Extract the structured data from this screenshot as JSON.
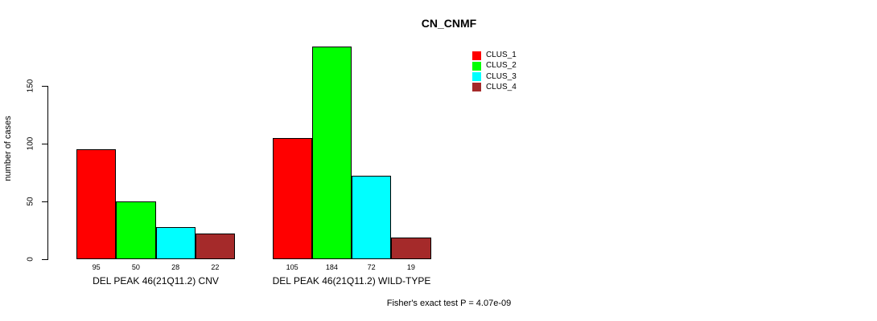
{
  "chart_data": {
    "type": "bar",
    "title": "CN_CNMF",
    "ylabel": "number of cases",
    "xlabel": "",
    "ylim": [
      0,
      150
    ],
    "yticks": [
      0,
      50,
      100,
      150
    ],
    "grid": false,
    "legend_position": "top-right",
    "bar_value_labels": true,
    "categories": [
      "DEL PEAK 46(21Q11.2) CNV",
      "DEL PEAK 46(21Q11.2) WILD-TYPE"
    ],
    "series": [
      {
        "name": "CLUS_1",
        "color": "#ff0000",
        "values": [
          95,
          105
        ]
      },
      {
        "name": "CLUS_2",
        "color": "#00ff00",
        "values": [
          50,
          184
        ]
      },
      {
        "name": "CLUS_3",
        "color": "#00ffff",
        "values": [
          28,
          72
        ]
      },
      {
        "name": "CLUS_4",
        "color": "#a52a2a",
        "values": [
          22,
          19
        ]
      }
    ],
    "annotation": "Fisher's exact test P = 4.07e-09"
  }
}
